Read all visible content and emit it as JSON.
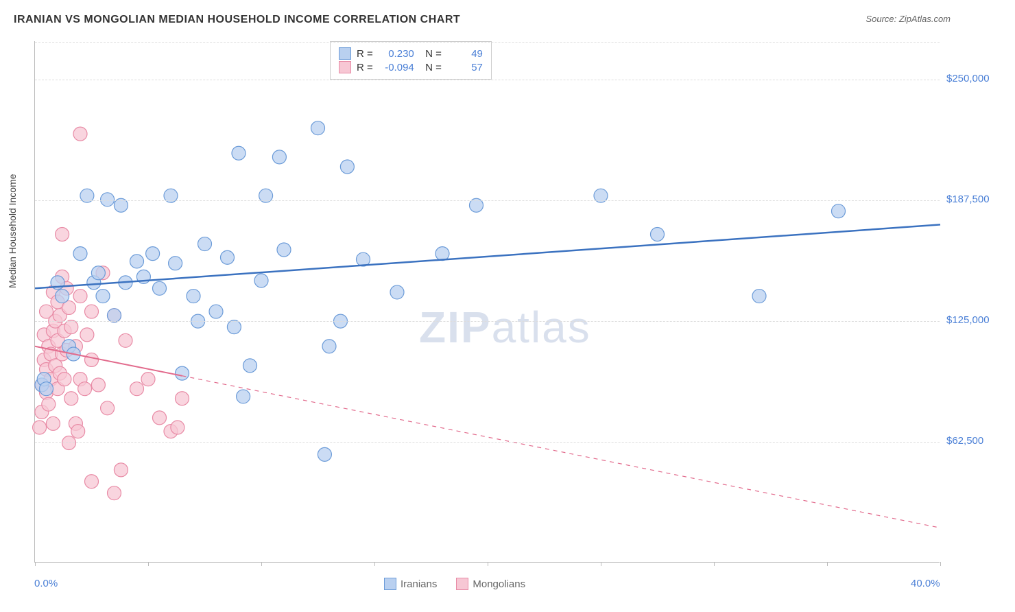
{
  "title": "IRANIAN VS MONGOLIAN MEDIAN HOUSEHOLD INCOME CORRELATION CHART",
  "source": "Source: ZipAtlas.com",
  "ylabel": "Median Household Income",
  "watermark_a": "ZIP",
  "watermark_b": "atlas",
  "chart": {
    "type": "scatter",
    "xlim": [
      0,
      40
    ],
    "ylim": [
      0,
      270000
    ],
    "xtick_positions": [
      0,
      5,
      10,
      15,
      20,
      25,
      30,
      35,
      40
    ],
    "xaxis_min_label": "0.0%",
    "xaxis_max_label": "40.0%",
    "yticks": [
      62500,
      125000,
      187500,
      250000
    ],
    "ytick_labels": [
      "$62,500",
      "$125,000",
      "$187,500",
      "$250,000"
    ],
    "grid_color": "#dddddd",
    "background_color": "#ffffff",
    "axis_color": "#bbbbbb",
    "ytick_label_color": "#4a7fd6",
    "series": [
      {
        "name": "Iranians",
        "color_fill": "#b9d0f0",
        "color_stroke": "#6b9bd8",
        "marker_radius": 10,
        "marker_opacity": 0.75,
        "R": "0.230",
        "N": "49",
        "trend": {
          "x1": 0,
          "y1": 142000,
          "x2": 40,
          "y2": 175000,
          "solid_until_x": 40,
          "line_color": "#3b72c0",
          "line_width": 2.5
        },
        "points": [
          [
            0.3,
            92000
          ],
          [
            0.4,
            95000
          ],
          [
            0.5,
            90000
          ],
          [
            1.0,
            145000
          ],
          [
            1.2,
            138000
          ],
          [
            1.5,
            112000
          ],
          [
            1.7,
            108000
          ],
          [
            2.0,
            160000
          ],
          [
            2.3,
            190000
          ],
          [
            2.6,
            145000
          ],
          [
            2.8,
            150000
          ],
          [
            3.0,
            138000
          ],
          [
            3.2,
            188000
          ],
          [
            3.5,
            128000
          ],
          [
            3.8,
            185000
          ],
          [
            4.0,
            145000
          ],
          [
            4.5,
            156000
          ],
          [
            4.8,
            148000
          ],
          [
            5.2,
            160000
          ],
          [
            5.5,
            142000
          ],
          [
            6.0,
            190000
          ],
          [
            6.2,
            155000
          ],
          [
            6.5,
            98000
          ],
          [
            7.0,
            138000
          ],
          [
            7.2,
            125000
          ],
          [
            7.5,
            165000
          ],
          [
            8.0,
            130000
          ],
          [
            8.5,
            158000
          ],
          [
            8.8,
            122000
          ],
          [
            9.0,
            212000
          ],
          [
            9.2,
            86000
          ],
          [
            9.5,
            102000
          ],
          [
            10.0,
            146000
          ],
          [
            10.2,
            190000
          ],
          [
            10.8,
            210000
          ],
          [
            11.0,
            162000
          ],
          [
            12.5,
            225000
          ],
          [
            12.8,
            56000
          ],
          [
            13.0,
            112000
          ],
          [
            13.5,
            125000
          ],
          [
            13.8,
            205000
          ],
          [
            14.5,
            157000
          ],
          [
            16.0,
            140000
          ],
          [
            18.0,
            160000
          ],
          [
            19.5,
            185000
          ],
          [
            25.0,
            190000
          ],
          [
            27.5,
            170000
          ],
          [
            32.0,
            138000
          ],
          [
            35.5,
            182000
          ]
        ]
      },
      {
        "name": "Mongolians",
        "color_fill": "#f7c7d4",
        "color_stroke": "#e88aa5",
        "marker_radius": 10,
        "marker_opacity": 0.75,
        "R": "-0.094",
        "N": "57",
        "trend": {
          "x1": 0,
          "y1": 112000,
          "x2": 40,
          "y2": 18000,
          "solid_until_x": 6.5,
          "line_color": "#e26a8c",
          "line_width": 2
        },
        "points": [
          [
            0.2,
            70000
          ],
          [
            0.3,
            78000
          ],
          [
            0.3,
            92000
          ],
          [
            0.4,
            105000
          ],
          [
            0.4,
            118000
          ],
          [
            0.5,
            88000
          ],
          [
            0.5,
            100000
          ],
          [
            0.5,
            130000
          ],
          [
            0.6,
            82000
          ],
          [
            0.6,
            112000
          ],
          [
            0.7,
            95000
          ],
          [
            0.7,
            108000
          ],
          [
            0.8,
            120000
          ],
          [
            0.8,
            140000
          ],
          [
            0.8,
            72000
          ],
          [
            0.9,
            125000
          ],
          [
            0.9,
            102000
          ],
          [
            1.0,
            115000
          ],
          [
            1.0,
            135000
          ],
          [
            1.0,
            90000
          ],
          [
            1.1,
            98000
          ],
          [
            1.1,
            128000
          ],
          [
            1.2,
            108000
          ],
          [
            1.2,
            148000
          ],
          [
            1.2,
            170000
          ],
          [
            1.3,
            120000
          ],
          [
            1.3,
            95000
          ],
          [
            1.4,
            110000
          ],
          [
            1.4,
            142000
          ],
          [
            1.5,
            132000
          ],
          [
            1.5,
            62000
          ],
          [
            1.6,
            85000
          ],
          [
            1.6,
            122000
          ],
          [
            1.8,
            72000
          ],
          [
            1.8,
            112000
          ],
          [
            1.9,
            68000
          ],
          [
            2.0,
            138000
          ],
          [
            2.0,
            95000
          ],
          [
            2.0,
            222000
          ],
          [
            2.2,
            90000
          ],
          [
            2.3,
            118000
          ],
          [
            2.5,
            130000
          ],
          [
            2.5,
            105000
          ],
          [
            2.5,
            42000
          ],
          [
            2.8,
            92000
          ],
          [
            3.0,
            150000
          ],
          [
            3.2,
            80000
          ],
          [
            3.5,
            128000
          ],
          [
            3.5,
            36000
          ],
          [
            3.8,
            48000
          ],
          [
            4.0,
            115000
          ],
          [
            4.5,
            90000
          ],
          [
            5.0,
            95000
          ],
          [
            5.5,
            75000
          ],
          [
            6.0,
            68000
          ],
          [
            6.3,
            70000
          ],
          [
            6.5,
            85000
          ]
        ]
      }
    ]
  },
  "bottom_legend": [
    {
      "label": "Iranians",
      "fill": "#b9d0f0",
      "stroke": "#6b9bd8"
    },
    {
      "label": "Mongolians",
      "fill": "#f7c7d4",
      "stroke": "#e88aa5"
    }
  ]
}
